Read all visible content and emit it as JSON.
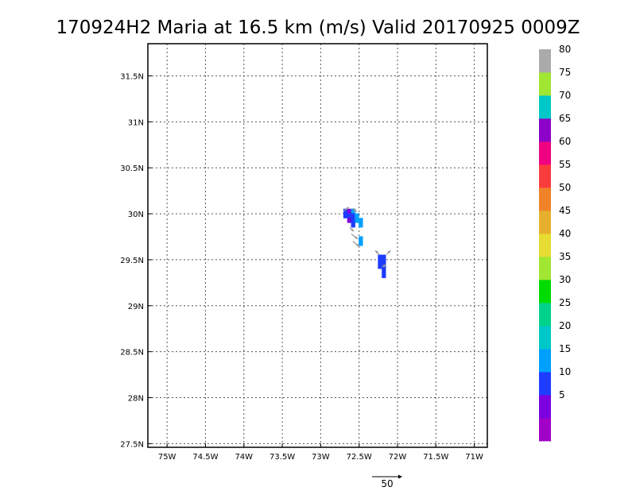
{
  "chart_data": {
    "type": "heatmap",
    "title": "170924H2 Maria at 16.5 km (m/s) Valid 20170925 0009Z",
    "xlabel": "",
    "ylabel": "",
    "xlim": [
      -75.25,
      -70.83
    ],
    "ylim": [
      27.46,
      31.85
    ],
    "grid": true,
    "x_ticks": [
      {
        "value": -75.0,
        "label": "75W"
      },
      {
        "value": -74.5,
        "label": "74.5W"
      },
      {
        "value": -74.0,
        "label": "74W"
      },
      {
        "value": -73.5,
        "label": "73.5W"
      },
      {
        "value": -73.0,
        "label": "73W"
      },
      {
        "value": -72.5,
        "label": "72.5W"
      },
      {
        "value": -72.0,
        "label": "72W"
      },
      {
        "value": -71.5,
        "label": "71.5W"
      },
      {
        "value": -71.0,
        "label": "71W"
      }
    ],
    "y_ticks": [
      {
        "value": 27.5,
        "label": "27.5N"
      },
      {
        "value": 28.0,
        "label": "28N"
      },
      {
        "value": 28.5,
        "label": "28.5N"
      },
      {
        "value": 29.0,
        "label": "29N"
      },
      {
        "value": 29.5,
        "label": "29.5N"
      },
      {
        "value": 30.0,
        "label": "30N"
      },
      {
        "value": 30.5,
        "label": "30.5N"
      },
      {
        "value": 31.0,
        "label": "31N"
      },
      {
        "value": 31.5,
        "label": "31.5N"
      }
    ],
    "colorbar": {
      "bins": [
        {
          "label": "",
          "color": "#a000c8"
        },
        {
          "label": "5",
          "color": "#7c00e0"
        },
        {
          "label": "10",
          "color": "#1e3cff"
        },
        {
          "label": "15",
          "color": "#00a0ff"
        },
        {
          "label": "20",
          "color": "#00c8c8"
        },
        {
          "label": "25",
          "color": "#00d28c"
        },
        {
          "label": "30",
          "color": "#00dc00"
        },
        {
          "label": "35",
          "color": "#a0e632"
        },
        {
          "label": "40",
          "color": "#e6dc32"
        },
        {
          "label": "45",
          "color": "#e6af2d"
        },
        {
          "label": "50",
          "color": "#f08228"
        },
        {
          "label": "55",
          "color": "#fa3c3c"
        },
        {
          "label": "60",
          "color": "#f00082"
        },
        {
          "label": "65",
          "color": "#8c00c8"
        },
        {
          "label": "70",
          "color": "#00c8c8"
        },
        {
          "label": "75",
          "color": "#a0e632"
        },
        {
          "label": "80",
          "color": "#aaaaaa"
        }
      ]
    },
    "cells": [
      {
        "lon": -72.68,
        "lat": 30.03,
        "value": 10
      },
      {
        "lon": -72.63,
        "lat": 30.03,
        "value": 5
      },
      {
        "lon": -72.58,
        "lat": 30.03,
        "value": 15
      },
      {
        "lon": -72.68,
        "lat": 29.98,
        "value": 10
      },
      {
        "lon": -72.63,
        "lat": 29.98,
        "value": 10
      },
      {
        "lon": -72.58,
        "lat": 29.98,
        "value": 10
      },
      {
        "lon": -72.53,
        "lat": 29.98,
        "value": 15
      },
      {
        "lon": -72.63,
        "lat": 29.93,
        "value": 5
      },
      {
        "lon": -72.58,
        "lat": 29.93,
        "value": 10
      },
      {
        "lon": -72.53,
        "lat": 29.93,
        "value": 15
      },
      {
        "lon": -72.48,
        "lat": 29.93,
        "value": 15
      },
      {
        "lon": -72.58,
        "lat": 29.88,
        "value": 10
      },
      {
        "lon": -72.48,
        "lat": 29.88,
        "value": 15
      },
      {
        "lon": -72.48,
        "lat": 29.73,
        "value": 15
      },
      {
        "lon": -72.48,
        "lat": 29.68,
        "value": 15
      },
      {
        "lon": -72.23,
        "lat": 29.53,
        "value": 10
      },
      {
        "lon": -72.18,
        "lat": 29.53,
        "value": 10
      },
      {
        "lon": -72.23,
        "lat": 29.48,
        "value": 10
      },
      {
        "lon": -72.18,
        "lat": 29.48,
        "value": 10
      },
      {
        "lon": -72.23,
        "lat": 29.43,
        "value": 10
      },
      {
        "lon": -72.18,
        "lat": 29.43,
        "value": 10
      },
      {
        "lon": -72.18,
        "lat": 29.38,
        "value": 10
      },
      {
        "lon": -72.18,
        "lat": 29.33,
        "value": 10
      }
    ],
    "vectors": [
      {
        "lon": -72.7,
        "lat": 30.03,
        "u": 4,
        "v": 3
      },
      {
        "lon": -72.58,
        "lat": 30.06,
        "u": 3,
        "v": -3
      },
      {
        "lon": -72.62,
        "lat": 29.85,
        "u": 3,
        "v": -3
      },
      {
        "lon": -72.6,
        "lat": 29.78,
        "u": 5,
        "v": -4
      },
      {
        "lon": -72.58,
        "lat": 29.7,
        "u": 5,
        "v": -4
      },
      {
        "lon": -72.24,
        "lat": 29.56,
        "u": -3,
        "v": 3
      },
      {
        "lon": -72.14,
        "lat": 29.56,
        "u": 3,
        "v": 3
      },
      {
        "lon": -72.2,
        "lat": 29.42,
        "u": 3,
        "v": 2
      }
    ],
    "reference_vector": {
      "length": 50,
      "label": "50"
    }
  }
}
